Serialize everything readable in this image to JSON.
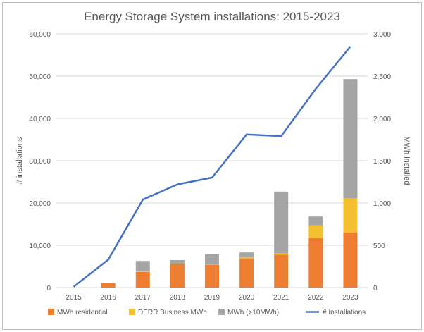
{
  "chart_data": {
    "type": "bar",
    "title": "Energy Storage System installations: 2015-2023",
    "categories": [
      "2015",
      "2016",
      "2017",
      "2018",
      "2019",
      "2020",
      "2021",
      "2022",
      "2023"
    ],
    "bar_series": [
      {
        "name": "MWh residential",
        "color": "#ED7D31",
        "values": [
          0,
          50,
          185,
          275,
          270,
          345,
          390,
          585,
          650
        ]
      },
      {
        "name": "DERR Business MWh",
        "color": "#F4C032",
        "values": [
          0,
          0,
          5,
          5,
          5,
          15,
          15,
          150,
          405
        ]
      },
      {
        "name": "MWh (>10MWh)",
        "color": "#A5A5A5",
        "values": [
          0,
          0,
          125,
          45,
          120,
          55,
          730,
          105,
          1410
        ]
      }
    ],
    "line_series": {
      "name": "# Installations",
      "color": "#4472C4",
      "values": [
        200,
        6600,
        20800,
        24400,
        26000,
        36200,
        35800,
        47000,
        57000
      ]
    },
    "ylabel_left": "# installations",
    "ylabel_right": "MWh installed",
    "ylim_left": [
      0,
      60000
    ],
    "ylim_right": [
      0,
      3000
    ],
    "yticks_left": [
      "0",
      "10,000",
      "20,000",
      "30,000",
      "40,000",
      "50,000",
      "60,000"
    ],
    "yticks_right": [
      "0",
      "500",
      "1,000",
      "1,500",
      "2,000",
      "2,500",
      "3,000"
    ],
    "grid": true,
    "legend_position": "bottom"
  }
}
